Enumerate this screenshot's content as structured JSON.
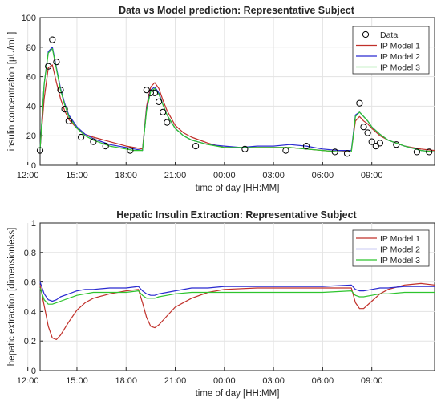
{
  "chart_data": [
    {
      "type": "line",
      "title": "Data vs Model prediction: Representative Subject",
      "xlabel": "time of day [HH:MM]",
      "ylabel": "insulin concentration [μU/mL]",
      "xlim": [
        "12:45",
        "24h+12:50"
      ],
      "ylim": [
        0,
        100
      ],
      "x_ticks": [
        "15:00",
        "18:00",
        "21:00",
        "00:00",
        "03:00",
        "06:00",
        "09:00",
        "12:00"
      ],
      "y_ticks": [
        0,
        20,
        40,
        60,
        80,
        100
      ],
      "grid": true,
      "legend_position": "top-right",
      "legend": [
        "Data",
        "IP Model 1",
        "IP Model 2",
        "IP Model 3"
      ],
      "colors": {
        "Data": "#000000",
        "IP Model 1": "#c0302a",
        "IP Model 2": "#2a2ad0",
        "IP Model 3": "#2ec42e"
      },
      "data_points": {
        "name": "Data",
        "x": [
          "12:45",
          "13:15",
          "13:30",
          "13:45",
          "14:00",
          "14:15",
          "14:30",
          "15:15",
          "16:00",
          "16:45",
          "18:15",
          "19:15",
          "19:30",
          "19:45",
          "20:00",
          "20:15",
          "20:30",
          "22:15",
          "24h+01:15",
          "24h+03:45",
          "24h+05:00",
          "24h+06:45",
          "24h+07:30",
          "24h+08:15",
          "24h+08:30",
          "24h+08:45",
          "24h+09:00",
          "24h+09:15",
          "24h+09:30",
          "24h+10:30",
          "24h+11:45",
          "24h+12:30"
        ],
        "y": [
          10,
          67,
          85,
          70,
          51,
          38,
          30,
          19,
          16,
          13,
          10,
          51,
          49,
          49,
          43,
          36,
          29,
          13,
          11,
          10,
          13,
          9,
          8,
          42,
          26,
          22,
          16,
          13,
          15,
          14,
          9,
          9
        ]
      },
      "series": [
        {
          "name": "IP Model 1",
          "x": [
            "12:45",
            "13:00",
            "13:15",
            "13:30",
            "13:45",
            "14:00",
            "14:15",
            "14:30",
            "15:00",
            "15:30",
            "16:00",
            "17:00",
            "18:00",
            "18:30",
            "19:00",
            "19:15",
            "19:30",
            "19:45",
            "20:00",
            "20:15",
            "20:30",
            "21:00",
            "21:30",
            "22:00",
            "23:00",
            "24h+00:00",
            "24h+01:00",
            "24h+02:00",
            "24h+03:00",
            "24h+04:00",
            "24h+05:00",
            "24h+06:00",
            "24h+07:00",
            "24h+07:45",
            "24h+08:00",
            "24h+08:15",
            "24h+08:30",
            "24h+08:45",
            "24h+09:00",
            "24h+09:30",
            "24h+10:00",
            "24h+11:00",
            "24h+12:00",
            "24h+12:50"
          ],
          "y": [
            11,
            45,
            66,
            68,
            56,
            45,
            37,
            31,
            25,
            21,
            19,
            16,
            13,
            12,
            11,
            40,
            53,
            56,
            52,
            44,
            37,
            27,
            22,
            19,
            15,
            12,
            12,
            12,
            12,
            12,
            11,
            10,
            9,
            10,
            30,
            33,
            30,
            28,
            25,
            20,
            17,
            13,
            11,
            10
          ]
        },
        {
          "name": "IP Model 2",
          "x": [
            "12:45",
            "13:00",
            "13:15",
            "13:30",
            "13:45",
            "14:00",
            "14:15",
            "14:30",
            "15:00",
            "15:30",
            "16:00",
            "17:00",
            "18:00",
            "18:30",
            "19:00",
            "19:15",
            "19:30",
            "19:45",
            "20:00",
            "20:15",
            "20:30",
            "21:00",
            "21:30",
            "22:00",
            "23:00",
            "24h+00:00",
            "24h+01:00",
            "24h+02:00",
            "24h+03:00",
            "24h+04:00",
            "24h+05:00",
            "24h+06:00",
            "24h+07:00",
            "24h+07:45",
            "24h+08:00",
            "24h+08:15",
            "24h+08:30",
            "24h+08:45",
            "24h+09:00",
            "24h+09:30",
            "24h+10:00",
            "24h+11:00",
            "24h+12:00",
            "24h+12:50"
          ],
          "y": [
            11,
            55,
            77,
            80,
            66,
            52,
            42,
            34,
            26,
            21,
            18,
            14,
            12,
            11,
            10,
            38,
            51,
            53,
            49,
            41,
            34,
            25,
            20,
            17,
            14,
            13,
            12,
            13,
            13,
            14,
            13,
            11,
            10,
            10,
            34,
            36,
            33,
            30,
            26,
            21,
            17,
            13,
            10,
            9
          ]
        },
        {
          "name": "IP Model 3",
          "x": [
            "12:45",
            "13:00",
            "13:15",
            "13:30",
            "13:45",
            "14:00",
            "14:15",
            "14:30",
            "15:00",
            "15:30",
            "16:00",
            "17:00",
            "18:00",
            "18:30",
            "19:00",
            "19:15",
            "19:30",
            "19:45",
            "20:00",
            "20:15",
            "20:30",
            "21:00",
            "21:30",
            "22:00",
            "23:00",
            "24h+00:00",
            "24h+01:00",
            "24h+02:00",
            "24h+03:00",
            "24h+04:00",
            "24h+05:00",
            "24h+06:00",
            "24h+07:00",
            "24h+07:45",
            "24h+08:00",
            "24h+08:15",
            "24h+08:30",
            "24h+08:45",
            "24h+09:00",
            "24h+09:30",
            "24h+10:00",
            "24h+11:00",
            "24h+12:00",
            "24h+12:50"
          ],
          "y": [
            11,
            55,
            76,
            79,
            65,
            51,
            41,
            33,
            25,
            20,
            17,
            13,
            11,
            10,
            10,
            37,
            50,
            52,
            48,
            41,
            34,
            25,
            20,
            17,
            14,
            12,
            12,
            12,
            12,
            12,
            11,
            10,
            9,
            9,
            33,
            36,
            33,
            30,
            26,
            21,
            17,
            13,
            10,
            9
          ]
        }
      ]
    },
    {
      "type": "line",
      "title": "Hepatic Insulin Extraction: Representative Subject",
      "xlabel": "time of day [HH:MM]",
      "ylabel": "hepatic extraction [dimensionless]",
      "xlim": [
        "12:45",
        "24h+12:50"
      ],
      "ylim": [
        0,
        1
      ],
      "x_ticks": [
        "15:00",
        "18:00",
        "21:00",
        "00:00",
        "03:00",
        "06:00",
        "09:00",
        "12:00"
      ],
      "y_ticks": [
        0,
        0.2,
        0.4,
        0.6,
        0.8,
        1
      ],
      "grid": true,
      "legend_position": "top-right",
      "legend": [
        "IP Model 1",
        "IP Model 2",
        "IP Model 3"
      ],
      "colors": {
        "IP Model 1": "#c0302a",
        "IP Model 2": "#2a2ad0",
        "IP Model 3": "#2ec42e"
      },
      "series": [
        {
          "name": "IP Model 1",
          "x": [
            "12:45",
            "13:00",
            "13:15",
            "13:30",
            "13:45",
            "14:00",
            "14:30",
            "15:00",
            "15:30",
            "16:00",
            "17:00",
            "18:00",
            "18:45",
            "19:00",
            "19:15",
            "19:30",
            "19:45",
            "20:00",
            "20:30",
            "21:00",
            "22:00",
            "23:00",
            "24h+00:00",
            "24h+02:00",
            "24h+04:00",
            "24h+06:00",
            "24h+07:45",
            "24h+08:00",
            "24h+08:15",
            "24h+08:30",
            "24h+09:00",
            "24h+09:30",
            "24h+10:00",
            "24h+11:00",
            "24h+12:00",
            "24h+12:50"
          ],
          "y": [
            0.58,
            0.44,
            0.3,
            0.22,
            0.21,
            0.24,
            0.33,
            0.41,
            0.46,
            0.49,
            0.52,
            0.54,
            0.55,
            0.46,
            0.36,
            0.3,
            0.29,
            0.31,
            0.37,
            0.43,
            0.49,
            0.53,
            0.55,
            0.56,
            0.56,
            0.56,
            0.56,
            0.46,
            0.42,
            0.42,
            0.47,
            0.52,
            0.55,
            0.58,
            0.59,
            0.58
          ]
        },
        {
          "name": "IP Model 2",
          "x": [
            "12:45",
            "13:00",
            "13:15",
            "13:30",
            "13:45",
            "14:00",
            "14:30",
            "15:00",
            "15:30",
            "16:00",
            "17:00",
            "18:00",
            "18:45",
            "19:00",
            "19:15",
            "19:30",
            "19:45",
            "20:00",
            "20:30",
            "21:00",
            "22:00",
            "23:00",
            "24h+00:00",
            "24h+02:00",
            "24h+04:00",
            "24h+06:00",
            "24h+07:45",
            "24h+08:00",
            "24h+08:15",
            "24h+08:30",
            "24h+09:00",
            "24h+09:30",
            "24h+10:00",
            "24h+11:00",
            "24h+12:00",
            "24h+12:50"
          ],
          "y": [
            0.6,
            0.52,
            0.48,
            0.47,
            0.48,
            0.5,
            0.52,
            0.54,
            0.55,
            0.55,
            0.56,
            0.56,
            0.57,
            0.54,
            0.52,
            0.51,
            0.51,
            0.52,
            0.53,
            0.54,
            0.56,
            0.56,
            0.57,
            0.57,
            0.57,
            0.57,
            0.58,
            0.55,
            0.54,
            0.54,
            0.55,
            0.56,
            0.56,
            0.57,
            0.57,
            0.57
          ]
        },
        {
          "name": "IP Model 3",
          "x": [
            "12:45",
            "13:00",
            "13:15",
            "13:30",
            "13:45",
            "14:00",
            "14:30",
            "15:00",
            "15:30",
            "16:00",
            "17:00",
            "18:00",
            "18:45",
            "19:00",
            "19:15",
            "19:30",
            "19:45",
            "20:00",
            "20:30",
            "21:00",
            "22:00",
            "23:00",
            "24h+00:00",
            "24h+02:00",
            "24h+04:00",
            "24h+06:00",
            "24h+07:45",
            "24h+08:00",
            "24h+08:15",
            "24h+08:30",
            "24h+09:00",
            "24h+09:30",
            "24h+10:00",
            "24h+11:00",
            "24h+12:00",
            "24h+12:50"
          ],
          "y": [
            0.56,
            0.48,
            0.45,
            0.45,
            0.46,
            0.47,
            0.49,
            0.51,
            0.52,
            0.53,
            0.53,
            0.53,
            0.54,
            0.51,
            0.49,
            0.49,
            0.49,
            0.5,
            0.51,
            0.52,
            0.53,
            0.53,
            0.53,
            0.53,
            0.53,
            0.53,
            0.54,
            0.51,
            0.5,
            0.5,
            0.51,
            0.52,
            0.52,
            0.53,
            0.53,
            0.53
          ]
        }
      ]
    }
  ]
}
